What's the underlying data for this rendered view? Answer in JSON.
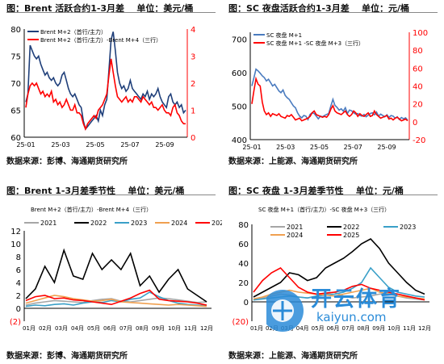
{
  "panels": [
    {
      "title": "图：Brent 活跃合约1-3月差",
      "unit": "单位：美元/桶",
      "source": "数据来源：彭博、海通期货研究所"
    },
    {
      "title": "图：SC 夜盘活跃合约1-3月差",
      "unit": "单位：元/桶",
      "source": "数据来源：上能源、海通期货研究所"
    },
    {
      "title": "图：Brent 1-3月差季节性",
      "unit": "单位：美元/桶",
      "source": "数据来源：彭博、海通期货研究所"
    },
    {
      "title": "图：SC 夜盘 1-3月差季节性",
      "unit": "单位：元/桶",
      "source": "数据来源：上能源、海通期货研究所"
    }
  ],
  "watermark": {
    "text": "开云体育",
    "url": "kaiyun.com"
  },
  "colors": {
    "navy": "#1f3f7a",
    "red": "#ff0000",
    "blue": "#4a7bbf",
    "gray": "#a6a6a6",
    "black": "#000000",
    "teal": "#3aa0c8",
    "orange": "#f0a050"
  },
  "chart_data": [
    {
      "type": "line",
      "title": "图：Brent 活跃合约1-3月差",
      "x_ticks": [
        "25-01",
        "25-03",
        "25-05",
        "25-07",
        "25-09"
      ],
      "y_left": [
        60,
        65,
        70,
        75,
        80
      ],
      "y_right": [
        0,
        1,
        2,
        3,
        4
      ],
      "ylim_left": [
        60,
        80
      ],
      "ylim_right": [
        0,
        4
      ],
      "series": [
        {
          "name": "Brent M+2（首行/主力）",
          "axis": "left",
          "color": "#1f3f7a",
          "values": [
            66.5,
            68,
            77,
            76,
            75,
            74.5,
            75,
            73.5,
            72.5,
            71.5,
            72,
            71,
            70.5,
            71,
            70,
            69.5,
            70,
            71.5,
            72,
            70.5,
            69,
            68,
            67.5,
            68,
            67,
            66,
            65.5,
            63,
            61.5,
            62,
            62.5,
            63,
            63.5,
            64,
            63,
            65,
            64,
            66,
            67,
            72.5,
            78,
            79.5,
            76,
            72,
            70,
            69,
            69.5,
            68.5,
            69,
            70.5,
            69,
            68.5,
            68,
            67.5,
            67,
            68,
            67.5,
            68.5,
            67,
            68,
            67.5,
            68,
            69,
            67.5,
            66.5,
            66,
            65.5,
            67.5,
            68,
            66.5,
            66,
            66.5,
            65.5,
            66,
            64.5,
            65
          ]
        },
        {
          "name": "Brent M+2（首行/主力）-Brent M+4（三行）",
          "axis": "right",
          "color": "#ff0000",
          "values": [
            1.1,
            1.6,
            1.9,
            2.0,
            1.9,
            2.0,
            1.8,
            1.6,
            1.7,
            1.5,
            1.6,
            1.5,
            1.7,
            1.3,
            1.4,
            1.2,
            1.3,
            1.1,
            1.2,
            1.4,
            1.2,
            1.0,
            1.0,
            1.2,
            0.9,
            0.9,
            0.8,
            0.5,
            0.3,
            0.5,
            0.6,
            0.7,
            0.8,
            0.7,
            1.0,
            1.1,
            1.2,
            1.4,
            1.6,
            2.3,
            2.9,
            2.4,
            1.9,
            1.5,
            1.4,
            1.3,
            1.4,
            1.5,
            1.3,
            1.4,
            1.3,
            1.5,
            1.5,
            1.4,
            1.3,
            1.5,
            1.4,
            1.3,
            1.2,
            1.3,
            1.1,
            1.1,
            1.0,
            1.1,
            1.2,
            1.0,
            0.9,
            0.9,
            0.8,
            1.1,
            1.2,
            0.9,
            0.8,
            0.6,
            0.5,
            0.5
          ]
        }
      ]
    },
    {
      "type": "line",
      "title": "图：SC 夜盘活跃合约1-3月差",
      "x_ticks": [
        "25-01",
        "25-03",
        "25-05",
        "25-07",
        "25-09"
      ],
      "y_left": [
        400,
        500,
        600,
        700
      ],
      "y_right": [
        -20,
        0,
        20,
        40,
        60,
        80,
        100
      ],
      "ylim_left": [
        400,
        720
      ],
      "ylim_right": [
        -20,
        100
      ],
      "series": [
        {
          "name": "SC 夜盘 M+1",
          "axis": "left",
          "color": "#4a7bbf",
          "values": [
            560,
            585,
            610,
            605,
            598,
            590,
            585,
            575,
            580,
            570,
            560,
            565,
            555,
            545,
            540,
            548,
            532,
            525,
            520,
            510,
            500,
            495,
            480,
            470,
            465,
            472,
            470,
            460,
            475,
            480,
            478,
            470,
            462,
            470,
            468,
            472,
            475,
            478,
            500,
            520,
            502,
            496,
            488,
            492,
            485,
            495,
            478,
            488,
            486,
            480,
            476,
            478,
            472,
            470,
            475,
            468,
            473,
            478,
            480,
            474,
            482,
            470,
            476,
            472,
            468,
            474,
            466,
            472,
            470,
            464,
            468,
            460,
            466,
            462,
            465,
            458
          ]
        },
        {
          "name": "SC 夜盘 M+1 -SC 夜盘 M+3（三行）",
          "axis": "right",
          "color": "#ff0000",
          "values": [
            20,
            35,
            48,
            42,
            40,
            22,
            12,
            8,
            10,
            6,
            9,
            8,
            7,
            9,
            6,
            5,
            4,
            7,
            6,
            8,
            5,
            2,
            3,
            4,
            1,
            2,
            3,
            4,
            6,
            10,
            12,
            8,
            7,
            6,
            5,
            6,
            5,
            8,
            14,
            18,
            12,
            10,
            9,
            8,
            10,
            12,
            8,
            6,
            8,
            12,
            10,
            6,
            9,
            7,
            6,
            8,
            10,
            6,
            7,
            12,
            8,
            6,
            4,
            5,
            6,
            7,
            3,
            4,
            2,
            4,
            5,
            3,
            1,
            2,
            3,
            1
          ]
        }
      ]
    },
    {
      "type": "line",
      "title": "图：Brent 1-3月差季节性",
      "x_ticks": [
        "01月",
        "02月",
        "03月",
        "04月",
        "05月",
        "06月",
        "07月",
        "08月",
        "09月",
        "10月",
        "11月",
        "12月"
      ],
      "y_ticks": [
        "(2)",
        "0",
        "2",
        "4",
        "6",
        "8",
        "10",
        "12"
      ],
      "ylim": [
        -2,
        12
      ],
      "legend_title": "Brent M+2（首行/主力）-Brent M+4（三行）",
      "series": [
        {
          "name": "2021",
          "color": "#a6a6a6",
          "values": [
            0.5,
            0.8,
            1.0,
            1.2,
            1.1,
            1.0,
            0.9,
            1.2,
            1.4,
            1.5,
            1.1,
            1.0,
            1.2,
            1.4,
            1.6,
            1.5,
            1.3,
            1.1,
            0.9,
            1.0
          ]
        },
        {
          "name": "2022",
          "color": "#000000",
          "values": [
            1.5,
            3.0,
            6.5,
            4.0,
            9.0,
            5.0,
            4.5,
            8.5,
            6.0,
            7.5,
            6.0,
            8.5,
            3.5,
            5.0,
            2.5,
            4.5,
            6.0,
            3.0,
            2.0,
            1.0
          ]
        },
        {
          "name": "2023",
          "color": "#3aa0c8",
          "values": [
            0.3,
            0.5,
            0.4,
            0.6,
            0.7,
            0.5,
            0.8,
            1.0,
            0.9,
            1.2,
            1.0,
            1.4,
            1.6,
            2.5,
            1.8,
            1.2,
            0.8,
            0.6,
            0.5,
            0.4
          ]
        },
        {
          "name": "2024",
          "color": "#f0a050",
          "values": [
            0.8,
            1.2,
            1.6,
            2.0,
            1.8,
            1.5,
            1.3,
            1.1,
            1.2,
            1.4,
            1.0,
            0.9,
            0.8,
            0.7,
            0.6,
            0.5,
            0.6,
            0.5,
            0.4,
            0.3
          ]
        },
        {
          "name": "2025",
          "color": "#ff0000",
          "values": [
            1.2,
            1.8,
            2.0,
            1.5,
            1.6,
            1.3,
            1.2,
            1.0,
            0.8,
            0.6,
            1.1,
            1.6,
            2.3,
            2.8,
            1.4,
            1.2,
            1.1,
            1.0,
            0.8,
            0.5
          ]
        }
      ]
    },
    {
      "type": "line",
      "title": "图：SC 夜盘 1-3月差季节性",
      "x_ticks": [
        "01月",
        "02月",
        "03月",
        "04月",
        "05月",
        "06月",
        "07月",
        "08月",
        "09月",
        "10月",
        "11月",
        "12月"
      ],
      "y_ticks": [
        "(20)",
        "0",
        "20",
        "40",
        "60",
        "80"
      ],
      "ylim": [
        -20,
        80
      ],
      "legend_title": "SC 夜盘 M+1（首行/主力）-SC 夜盘 M+3（三行）",
      "series": [
        {
          "name": "2021",
          "color": "#a6a6a6",
          "values": [
            2,
            4,
            6,
            8,
            7,
            5,
            4,
            6,
            8,
            10,
            6,
            4,
            5,
            6,
            8,
            9,
            6,
            4,
            3,
            2
          ]
        },
        {
          "name": "2022",
          "color": "#000000",
          "values": [
            5,
            10,
            15,
            20,
            30,
            28,
            22,
            25,
            35,
            40,
            45,
            52,
            60,
            65,
            55,
            40,
            30,
            20,
            12,
            8
          ]
        },
        {
          "name": "2023",
          "color": "#3aa0c8",
          "values": [
            2,
            3,
            4,
            5,
            6,
            5,
            4,
            6,
            7,
            8,
            10,
            14,
            20,
            35,
            25,
            15,
            10,
            8,
            6,
            5
          ]
        },
        {
          "name": "2024",
          "color": "#f0a050",
          "values": [
            3,
            5,
            8,
            10,
            12,
            10,
            9,
            8,
            7,
            6,
            8,
            10,
            12,
            14,
            10,
            8,
            6,
            5,
            4,
            3
          ]
        },
        {
          "name": "2025",
          "color": "#ff0000",
          "values": [
            10,
            22,
            30,
            35,
            25,
            15,
            10,
            8,
            9,
            10,
            12,
            16,
            18,
            14,
            12,
            10,
            8,
            6,
            4,
            2
          ]
        }
      ]
    }
  ]
}
